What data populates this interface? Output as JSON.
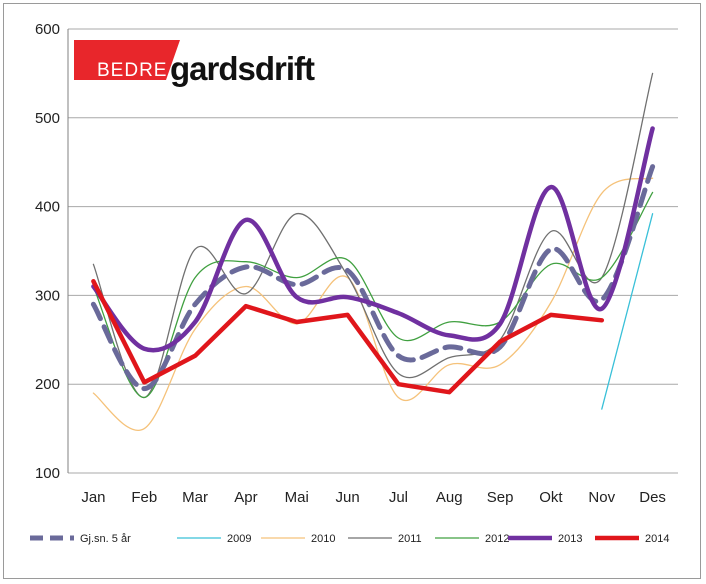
{
  "logo": {
    "red_part": "BEDRE",
    "black_part": "gardsdrift",
    "red_color": "#e8262b"
  },
  "chart_data": {
    "type": "line",
    "title": "",
    "xlabel": "",
    "ylabel": "",
    "ylim": [
      100,
      600
    ],
    "yticks": [
      100,
      200,
      300,
      400,
      500,
      600
    ],
    "grid": true,
    "legend_position": "bottom",
    "categories": [
      "Jan",
      "Feb",
      "Mar",
      "Apr",
      "Mai",
      "Jun",
      "Jul",
      "Aug",
      "Sep",
      "Okt",
      "Nov",
      "Des"
    ],
    "series": [
      {
        "name": "Gj.sn. 5 år",
        "color": "#6a6a9a",
        "style": "dashed",
        "smooth": true,
        "values": [
          290,
          195,
          290,
          332,
          312,
          328,
          232,
          242,
          242,
          352,
          295,
          445
        ]
      },
      {
        "name": "2009",
        "color": "#39c0d8",
        "style": "thin",
        "smooth": false,
        "values": [
          null,
          null,
          null,
          null,
          null,
          null,
          null,
          null,
          null,
          null,
          172,
          392
        ]
      },
      {
        "name": "2010",
        "color": "#f5c27a",
        "style": "thin",
        "smooth": true,
        "values": [
          190,
          150,
          262,
          310,
          268,
          320,
          185,
          222,
          222,
          292,
          415,
          432
        ]
      },
      {
        "name": "2011",
        "color": "#707070",
        "style": "thin",
        "smooth": true,
        "values": [
          335,
          185,
          352,
          302,
          392,
          322,
          212,
          230,
          250,
          372,
          320,
          550
        ]
      },
      {
        "name": "2012",
        "color": "#40a040",
        "style": "thin",
        "smooth": true,
        "values": [
          310,
          185,
          320,
          338,
          320,
          340,
          252,
          270,
          270,
          335,
          320,
          416
        ]
      },
      {
        "name": "2013",
        "color": "#7030a0",
        "style": "thick",
        "smooth": true,
        "values": [
          310,
          240,
          270,
          385,
          298,
          298,
          280,
          255,
          268,
          422,
          285,
          488
        ]
      },
      {
        "name": "2014",
        "color": "#e0161b",
        "style": "thick",
        "smooth": false,
        "values": [
          316,
          202,
          232,
          288,
          270,
          278,
          200,
          191,
          248,
          278,
          272,
          null
        ]
      }
    ]
  }
}
